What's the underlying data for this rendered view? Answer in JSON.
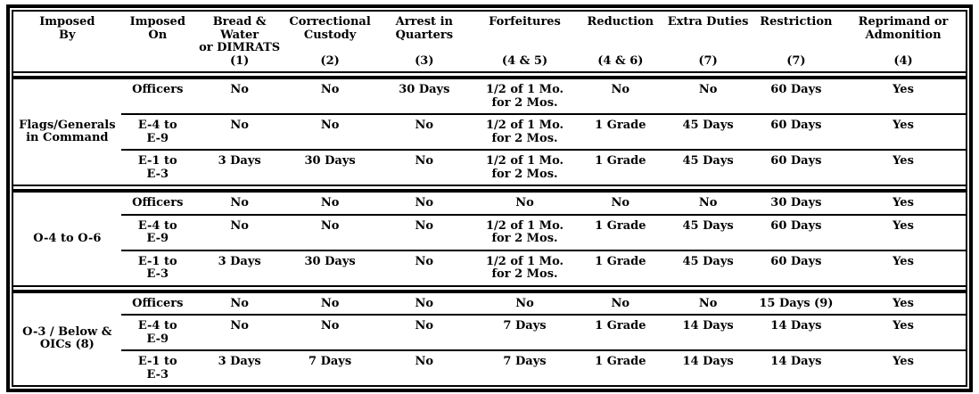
{
  "table": {
    "columns": [
      {
        "lines": [
          "Imposed",
          "By"
        ],
        "note": ""
      },
      {
        "lines": [
          "Imposed",
          "On"
        ],
        "note": ""
      },
      {
        "lines": [
          "Bread & Water",
          "or DIMRATS"
        ],
        "note": "(1)"
      },
      {
        "lines": [
          "Correctional",
          "Custody"
        ],
        "note": "(2)"
      },
      {
        "lines": [
          "Arrest in",
          "Quarters"
        ],
        "note": "(3)"
      },
      {
        "lines": [
          "Forfeitures"
        ],
        "note": "(4 & 5)"
      },
      {
        "lines": [
          "Reduction"
        ],
        "note": "(4 & 6)"
      },
      {
        "lines": [
          "Extra Duties"
        ],
        "note": "(7)"
      },
      {
        "lines": [
          "Restriction"
        ],
        "note": "(7)"
      },
      {
        "lines": [
          "Reprimand or",
          "Admonition"
        ],
        "note": "(4)"
      }
    ],
    "groups": [
      {
        "imposed_by": [
          "Flags/Generals",
          "in Command"
        ],
        "rows": [
          {
            "imposed_on": "Officers",
            "cells": [
              "No",
              "No",
              "30 Days",
              [
                "1/2 of 1 Mo.",
                "for 2 Mos."
              ],
              "No",
              "No",
              "60 Days",
              "Yes"
            ]
          },
          {
            "imposed_on": [
              "E-4 to",
              "E-9"
            ],
            "cells": [
              "No",
              "No",
              "No",
              [
                "1/2 of 1 Mo.",
                "for 2 Mos."
              ],
              "1 Grade",
              "45 Days",
              "60 Days",
              "Yes"
            ]
          },
          {
            "imposed_on": [
              "E-1 to",
              "E-3"
            ],
            "cells": [
              "3 Days",
              "30 Days",
              "No",
              [
                "1/2 of 1 Mo.",
                "for 2 Mos."
              ],
              "1 Grade",
              "45 Days",
              "60 Days",
              "Yes"
            ]
          }
        ]
      },
      {
        "imposed_by": [
          "O-4 to O-6"
        ],
        "rows": [
          {
            "imposed_on": "Officers",
            "cells": [
              "No",
              "No",
              "No",
              "No",
              "No",
              "No",
              "30 Days",
              "Yes"
            ]
          },
          {
            "imposed_on": [
              "E-4 to",
              "E-9"
            ],
            "cells": [
              "No",
              "No",
              "No",
              [
                "1/2 of 1 Mo.",
                "for 2 Mos."
              ],
              "1 Grade",
              "45 Days",
              "60 Days",
              "Yes"
            ]
          },
          {
            "imposed_on": [
              "E-1 to",
              "E-3"
            ],
            "cells": [
              "3 Days",
              "30 Days",
              "No",
              [
                "1/2 of 1 Mo.",
                "for 2 Mos."
              ],
              "1 Grade",
              "45 Days",
              "60 Days",
              "Yes"
            ]
          }
        ]
      },
      {
        "imposed_by": [
          "O-3 / Below &",
          "OICs (8)"
        ],
        "rows": [
          {
            "imposed_on": "Officers",
            "cells": [
              "No",
              "No",
              "No",
              "No",
              "No",
              "No",
              "15 Days (9)",
              "Yes"
            ]
          },
          {
            "imposed_on": [
              "E-4 to",
              "E-9"
            ],
            "cells": [
              "No",
              "No",
              "No",
              "7 Days",
              "1 Grade",
              "14 Days",
              "14 Days",
              "Yes"
            ]
          },
          {
            "imposed_on": [
              "E-1 to",
              "E-3"
            ],
            "cells": [
              "3 Days",
              "7 Days",
              "No",
              "7 Days",
              "1 Grade",
              "14 Days",
              "14 Days",
              "Yes"
            ]
          }
        ]
      }
    ]
  }
}
